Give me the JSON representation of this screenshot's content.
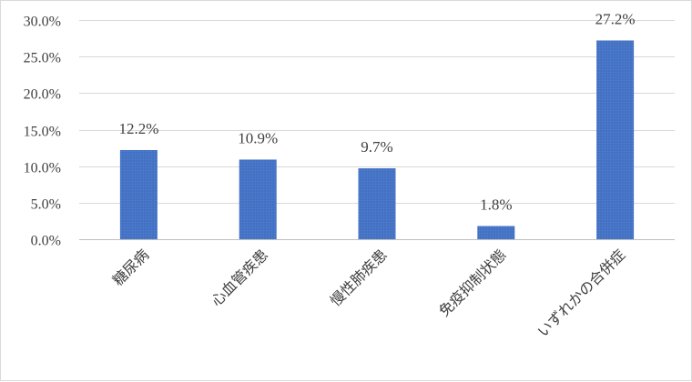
{
  "chart_data": {
    "type": "bar",
    "title": "",
    "xlabel": "",
    "ylabel": "",
    "categories": [
      "糖尿病",
      "心血管疾患",
      "慢性肺疾患",
      "免疫抑制状態",
      "いずれかの合併症"
    ],
    "values": [
      12.2,
      10.9,
      9.7,
      1.8,
      27.2
    ],
    "data_labels": [
      "12.2%",
      "10.9%",
      "9.7%",
      "1.8%",
      "27.2%"
    ],
    "ylim": [
      0,
      30
    ],
    "y_ticks": [
      0,
      5,
      10,
      15,
      20,
      25,
      30
    ],
    "y_tick_labels": [
      "0.0%",
      "5.0%",
      "10.0%",
      "15.0%",
      "20.0%",
      "25.0%",
      "30.0%"
    ],
    "grid": true,
    "legend": "none",
    "bar_color": "#4472c4",
    "category_label_rotation": "-45deg"
  }
}
